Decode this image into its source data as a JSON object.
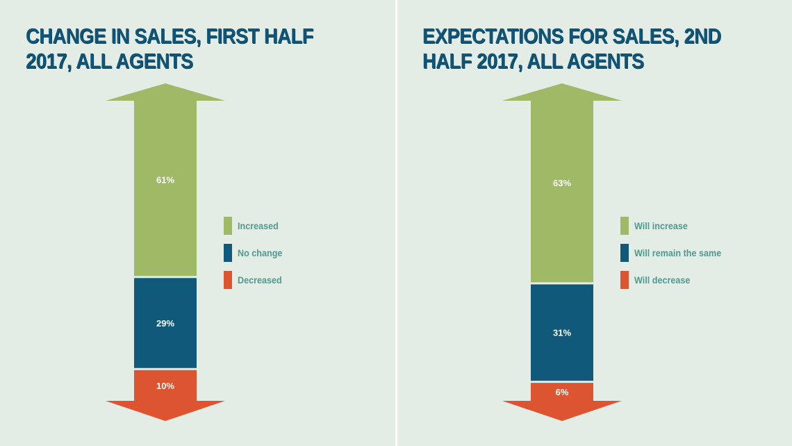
{
  "chart_data": [
    {
      "type": "bar",
      "title": "CHANGE IN SALES, FIRST HALF 2017, ALL AGENTS",
      "categories": [
        "Increased",
        "No change",
        "Decreased"
      ],
      "values": [
        61,
        29,
        10
      ],
      "labels": [
        "61%",
        "29%",
        "10%"
      ],
      "colors": [
        "#9fb967",
        "#10597a",
        "#dd5530"
      ],
      "stacked": true,
      "legend": "right"
    },
    {
      "type": "bar",
      "title": "EXPECTATIONS FOR SALES, 2ND HALF 2017, ALL AGENTS",
      "categories": [
        "Will increase",
        "Will remain the same",
        "Will decrease"
      ],
      "values": [
        63,
        31,
        6
      ],
      "labels": [
        "63%",
        "31%",
        "6%"
      ],
      "colors": [
        "#9fb967",
        "#10597a",
        "#dd5530"
      ],
      "stacked": true,
      "legend": "right"
    }
  ]
}
